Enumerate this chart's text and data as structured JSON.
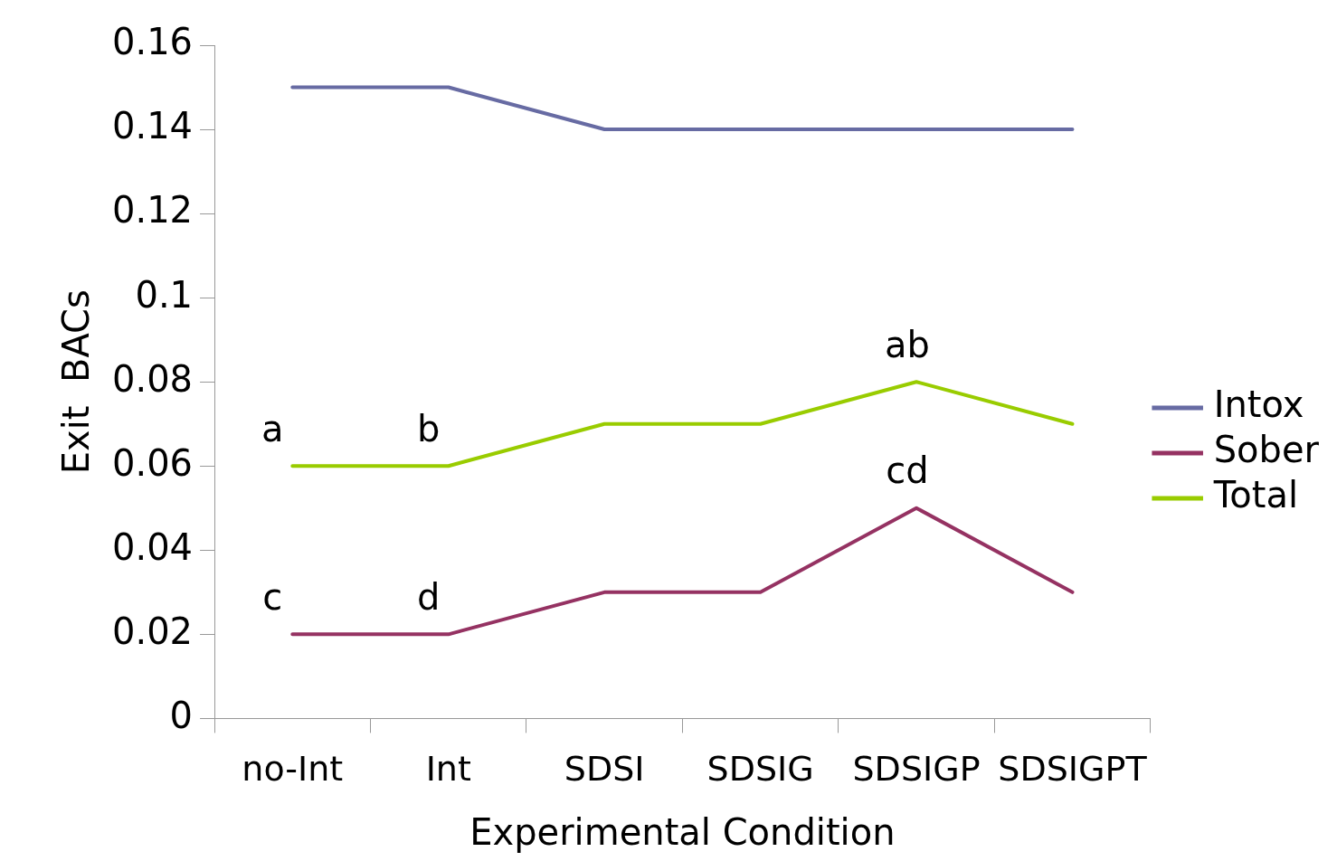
{
  "chart_data": {
    "type": "line",
    "xlabel": "Experimental Condition",
    "ylabel": "Exit  BACs",
    "categories": [
      "no-Int",
      "Int",
      "SDSI",
      "SDSIG",
      "SDSIGP",
      "SDSIGPT"
    ],
    "series": [
      {
        "name": "Intox",
        "color": "#676ba3",
        "values": [
          0.15,
          0.15,
          0.14,
          0.14,
          0.14,
          0.14
        ]
      },
      {
        "name": "Sober",
        "color": "#953262",
        "values": [
          0.02,
          0.02,
          0.03,
          0.03,
          0.05,
          0.03
        ]
      },
      {
        "name": "Total",
        "color": "#99cc00",
        "values": [
          0.06,
          0.06,
          0.07,
          0.07,
          0.08,
          0.07
        ]
      }
    ],
    "ylim": [
      0,
      0.16
    ],
    "yticks": [
      0,
      0.02,
      0.04,
      0.06,
      0.08,
      0.1,
      0.12,
      0.14,
      0.16
    ],
    "grid": false,
    "legend": "right",
    "marker": "none",
    "line_style": "solid",
    "annotations": [
      {
        "text": "a",
        "x": "no-Int",
        "y": 0.06
      },
      {
        "text": "b",
        "x": "Int",
        "y": 0.06
      },
      {
        "text": "ab",
        "x": "SDSIGP",
        "y": 0.08
      },
      {
        "text": "c",
        "x": "no-Int",
        "y": 0.02
      },
      {
        "text": "d",
        "x": "Int",
        "y": 0.02
      },
      {
        "text": "cd",
        "x": "SDSIGP",
        "y": 0.05
      }
    ]
  }
}
